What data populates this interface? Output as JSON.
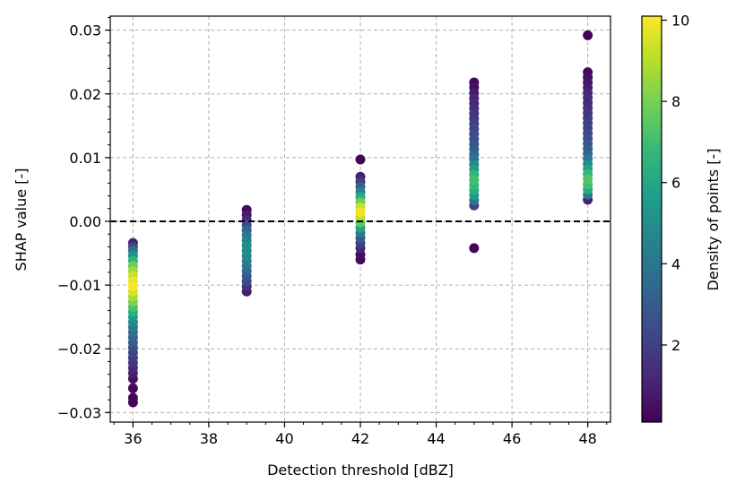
{
  "chart_data": {
    "type": "scatter",
    "title": "",
    "xlabel": "Detection threshold [dBZ]",
    "ylabel": "SHAP value [-]",
    "xlim": [
      35.4,
      48.6
    ],
    "ylim": [
      -0.0315,
      0.0322
    ],
    "xticks": [
      36,
      38,
      40,
      42,
      44,
      46,
      48
    ],
    "xtick_labels": [
      "36",
      "38",
      "40",
      "42",
      "44",
      "46",
      "48"
    ],
    "yticks": [
      -0.03,
      -0.02,
      -0.01,
      0.0,
      0.01,
      0.02,
      0.03
    ],
    "ytick_labels": [
      "−0.03",
      "−0.02",
      "−0.01",
      "0.00",
      "0.01",
      "0.02",
      "0.03"
    ],
    "grid": true,
    "reference_line": {
      "y": 0.0,
      "style": "dashed",
      "color": "#000000"
    },
    "colorbar": {
      "label": "Density of points [-]",
      "range": [
        0.1,
        10.1
      ],
      "ticks": [
        2,
        4,
        6,
        8,
        10
      ],
      "tick_labels": [
        "2",
        "4",
        "6",
        "8",
        "10"
      ],
      "colormap": [
        "#440154",
        "#482878",
        "#3e4989",
        "#31688e",
        "#26828e",
        "#1f9e89",
        "#35b779",
        "#6ece58",
        "#b5de2b",
        "#fde725"
      ]
    },
    "series": [
      {
        "x": 36,
        "points": [
          [
            -0.0284,
            0.2
          ],
          [
            -0.0277,
            0.2
          ],
          [
            -0.0262,
            0.3
          ],
          [
            -0.0247,
            0.6
          ],
          [
            -0.0238,
            1.0
          ],
          [
            -0.023,
            1.3
          ],
          [
            -0.0222,
            1.6
          ],
          [
            -0.0214,
            1.9
          ],
          [
            -0.0206,
            2.2
          ],
          [
            -0.0198,
            2.5
          ],
          [
            -0.019,
            2.9
          ],
          [
            -0.0182,
            3.3
          ],
          [
            -0.0174,
            3.7
          ],
          [
            -0.0166,
            4.2
          ],
          [
            -0.0158,
            4.8
          ],
          [
            -0.015,
            5.5
          ],
          [
            -0.0142,
            6.3
          ],
          [
            -0.0134,
            7.2
          ],
          [
            -0.0126,
            8.0
          ],
          [
            -0.0118,
            8.8
          ],
          [
            -0.011,
            9.5
          ],
          [
            -0.0102,
            10.0
          ],
          [
            -0.0094,
            9.8
          ],
          [
            -0.0086,
            9.3
          ],
          [
            -0.0078,
            8.6
          ],
          [
            -0.007,
            7.8
          ],
          [
            -0.0062,
            6.6
          ],
          [
            -0.0054,
            5.2
          ],
          [
            -0.0046,
            3.8
          ],
          [
            -0.004,
            2.2
          ],
          [
            -0.0034,
            1.0
          ]
        ]
      },
      {
        "x": 39,
        "points": [
          [
            -0.011,
            0.8
          ],
          [
            -0.0102,
            1.5
          ],
          [
            -0.0094,
            2.2
          ],
          [
            -0.0086,
            2.8
          ],
          [
            -0.0078,
            3.4
          ],
          [
            -0.007,
            3.9
          ],
          [
            -0.0062,
            4.4
          ],
          [
            -0.0054,
            4.8
          ],
          [
            -0.0046,
            5.0
          ],
          [
            -0.0038,
            4.9
          ],
          [
            -0.003,
            4.6
          ],
          [
            -0.0022,
            4.1
          ],
          [
            -0.0014,
            3.4
          ],
          [
            -0.0006,
            2.4
          ],
          [
            0.0002,
            1.4
          ],
          [
            0.001,
            0.8
          ],
          [
            0.0018,
            0.4
          ]
        ]
      },
      {
        "x": 42,
        "points": [
          [
            -0.006,
            0.3
          ],
          [
            -0.0052,
            0.5
          ],
          [
            -0.0042,
            1.2
          ],
          [
            -0.0034,
            2.0
          ],
          [
            -0.0026,
            3.0
          ],
          [
            -0.0018,
            4.3
          ],
          [
            -0.001,
            5.8
          ],
          [
            -0.0002,
            7.5
          ],
          [
            0.0006,
            9.0
          ],
          [
            0.0014,
            9.9
          ],
          [
            0.0022,
            9.2
          ],
          [
            0.003,
            7.8
          ],
          [
            0.0038,
            6.2
          ],
          [
            0.0046,
            4.6
          ],
          [
            0.0054,
            3.2
          ],
          [
            0.0062,
            2.0
          ],
          [
            0.007,
            1.0
          ],
          [
            0.0097,
            0.2
          ]
        ]
      },
      {
        "x": 45,
        "points": [
          [
            -0.0042,
            0.2
          ],
          [
            0.0025,
            2.2
          ],
          [
            0.0033,
            4.2
          ],
          [
            0.0041,
            5.4
          ],
          [
            0.0049,
            6.2
          ],
          [
            0.0057,
            6.8
          ],
          [
            0.0065,
            7.0
          ],
          [
            0.0073,
            6.6
          ],
          [
            0.0081,
            5.6
          ],
          [
            0.0089,
            4.8
          ],
          [
            0.0097,
            4.0
          ],
          [
            0.0105,
            3.4
          ],
          [
            0.0113,
            3.0
          ],
          [
            0.0121,
            2.8
          ],
          [
            0.0129,
            2.6
          ],
          [
            0.0137,
            2.4
          ],
          [
            0.0145,
            2.2
          ],
          [
            0.0153,
            2.0
          ],
          [
            0.0161,
            1.8
          ],
          [
            0.0169,
            1.6
          ],
          [
            0.0177,
            1.4
          ],
          [
            0.0185,
            1.3
          ],
          [
            0.0193,
            1.1
          ],
          [
            0.0201,
            0.8
          ],
          [
            0.021,
            0.5
          ],
          [
            0.0218,
            0.3
          ]
        ]
      },
      {
        "x": 48,
        "points": [
          [
            0.0034,
            1.0
          ],
          [
            0.0042,
            4.2
          ],
          [
            0.005,
            6.2
          ],
          [
            0.0058,
            7.1
          ],
          [
            0.0066,
            7.4
          ],
          [
            0.0074,
            6.8
          ],
          [
            0.0082,
            5.8
          ],
          [
            0.009,
            4.8
          ],
          [
            0.0098,
            4.0
          ],
          [
            0.0106,
            3.4
          ],
          [
            0.0114,
            3.0
          ],
          [
            0.0122,
            2.7
          ],
          [
            0.013,
            2.5
          ],
          [
            0.0138,
            2.3
          ],
          [
            0.0146,
            2.1
          ],
          [
            0.0154,
            2.0
          ],
          [
            0.0162,
            1.8
          ],
          [
            0.017,
            1.7
          ],
          [
            0.0178,
            1.5
          ],
          [
            0.0186,
            1.4
          ],
          [
            0.0194,
            1.3
          ],
          [
            0.0202,
            1.1
          ],
          [
            0.021,
            0.9
          ],
          [
            0.0218,
            0.7
          ],
          [
            0.0226,
            0.5
          ],
          [
            0.0234,
            0.3
          ],
          [
            0.0292,
            0.2
          ]
        ]
      }
    ]
  }
}
